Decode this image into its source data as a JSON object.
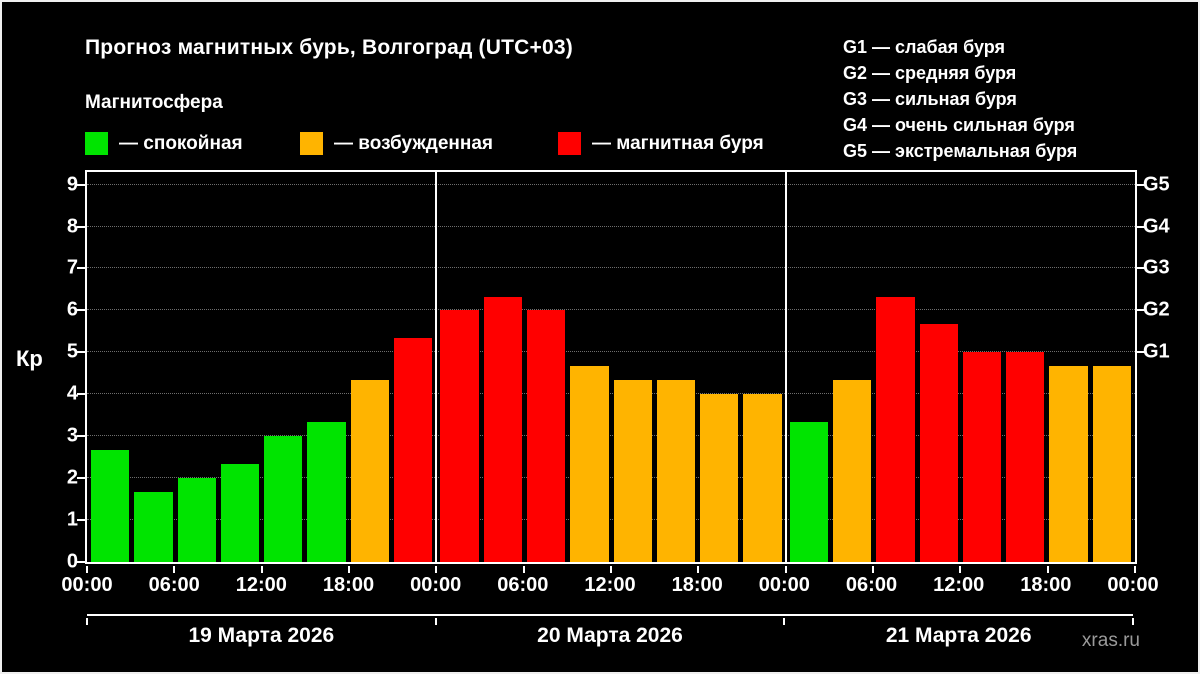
{
  "title": "Прогноз магнитных бурь, Волгоград (UTC+03)",
  "subtitle": "Магнитосфера",
  "watermark": "xras.ru",
  "palette": {
    "quiet": "#00e400",
    "excited": "#ffb400",
    "storm": "#ff0000"
  },
  "legend": [
    {
      "label": "— спокойная",
      "color_key": "quiet"
    },
    {
      "label": "— возбужденная",
      "color_key": "excited"
    },
    {
      "label": "— магнитная буря",
      "color_key": "storm"
    }
  ],
  "storm_scale": [
    "G1 — слабая буря",
    "G2 — средняя буря",
    "G3 — сильная буря",
    "G4 — очень сильная буря",
    "G5 — экстремальная буря"
  ],
  "chart_data": {
    "type": "bar",
    "title": "Прогноз магнитных бурь, Волгоград (UTC+03)",
    "ylabel": "Кр",
    "ylim": [
      0,
      9.3
    ],
    "yticks": [
      0,
      1,
      2,
      3,
      4,
      5,
      6,
      7,
      8,
      9
    ],
    "right_axis": [
      {
        "label": "G1",
        "value": 5
      },
      {
        "label": "G2",
        "value": 6
      },
      {
        "label": "G3",
        "value": 7
      },
      {
        "label": "G4",
        "value": 8
      },
      {
        "label": "G5",
        "value": 9
      }
    ],
    "x_tick_labels": [
      "00:00",
      "06:00",
      "12:00",
      "18:00",
      "00:00",
      "06:00",
      "12:00",
      "18:00",
      "00:00",
      "06:00",
      "12:00",
      "18:00",
      "00:00"
    ],
    "interval_hours": 3,
    "days": [
      {
        "date": "19 Марта 2026",
        "values": [
          2.67,
          1.67,
          2.0,
          2.33,
          3.0,
          3.33,
          4.33,
          5.33
        ],
        "colors": [
          "quiet",
          "quiet",
          "quiet",
          "quiet",
          "quiet",
          "quiet",
          "excited",
          "storm"
        ]
      },
      {
        "date": "20 Марта 2026",
        "values": [
          6.0,
          6.33,
          6.0,
          4.67,
          4.33,
          4.33,
          4.0,
          4.0
        ],
        "colors": [
          "storm",
          "storm",
          "storm",
          "excited",
          "excited",
          "excited",
          "excited",
          "excited"
        ]
      },
      {
        "date": "21 Марта 2026",
        "values": [
          3.33,
          4.33,
          6.33,
          5.67,
          5.0,
          5.0,
          4.67,
          4.67
        ],
        "colors": [
          "quiet",
          "excited",
          "storm",
          "storm",
          "storm",
          "storm",
          "excited",
          "excited"
        ]
      }
    ],
    "grid": "dotted-horizontal",
    "legend_position": "top"
  }
}
